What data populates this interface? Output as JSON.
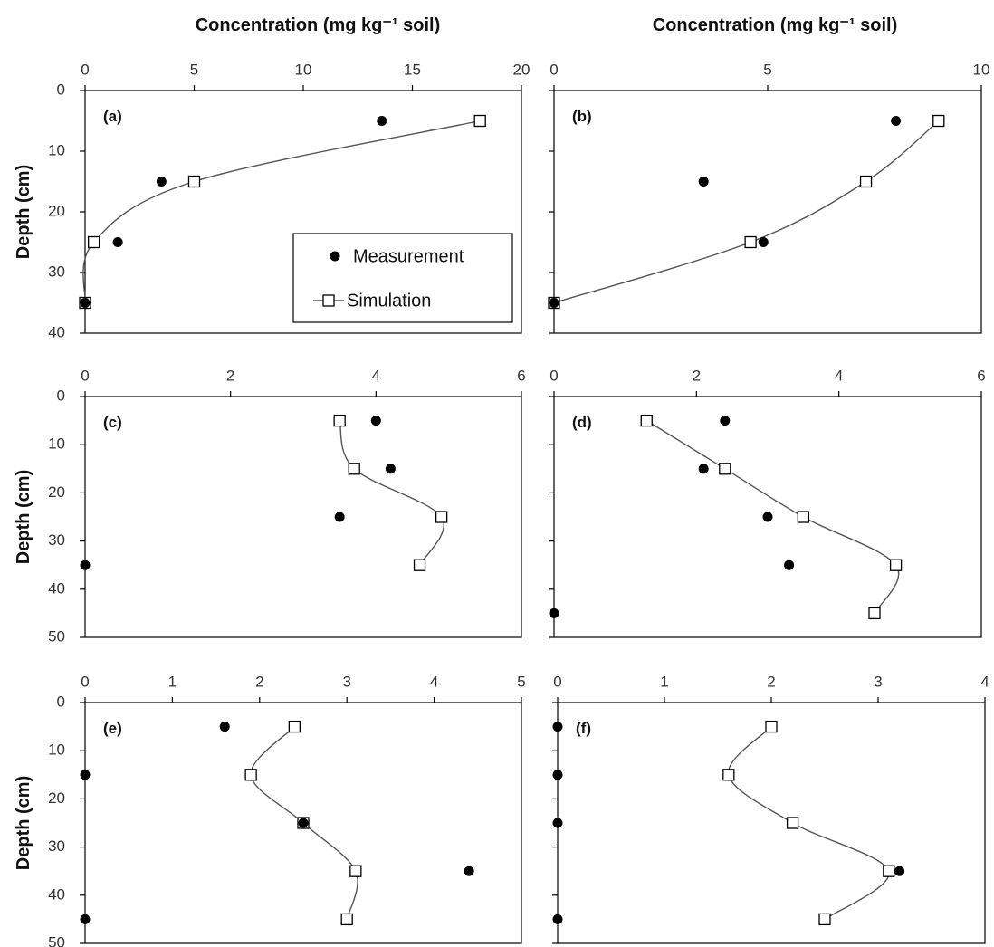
{
  "colors": {
    "frame": "#000000",
    "curve": "#555555",
    "marker": "#000000",
    "background": "#ffffff"
  },
  "legend": {
    "measurement_label": "Measurement",
    "simulation_label": "Simulation"
  },
  "chart_data": [
    {
      "type": "scatter",
      "panel_label": "(a)",
      "xlabel": "Concentration (mg kg⁻¹ soil)",
      "ylabel": "Depth (cm)",
      "xlim": [
        0,
        20
      ],
      "ylim": [
        0,
        40
      ],
      "x_ticks": [
        0,
        5,
        10,
        15,
        20
      ],
      "y_ticks": [
        0,
        10,
        20,
        30,
        40
      ],
      "y_reversed": true,
      "x_axis_position": "top",
      "legend_position": "bottom-right",
      "series": [
        {
          "name": "Measurement",
          "marker": "filled-circle",
          "x": [
            13.6,
            3.5,
            1.5,
            0.0
          ],
          "y": [
            5,
            15,
            25,
            35
          ]
        },
        {
          "name": "Simulation",
          "marker": "open-square",
          "line": "smooth",
          "x": [
            18.1,
            5.0,
            0.4,
            0.0
          ],
          "y": [
            5,
            15,
            25,
            35
          ]
        }
      ]
    },
    {
      "type": "scatter",
      "panel_label": "(b)",
      "xlabel": "Concentration (mg kg⁻¹ soil)",
      "ylabel": "",
      "xlim": [
        0,
        10
      ],
      "ylim": [
        0,
        40
      ],
      "x_ticks": [
        0,
        5,
        10
      ],
      "y_ticks": [
        0,
        10,
        20,
        30,
        40
      ],
      "y_reversed": true,
      "x_axis_position": "top",
      "series": [
        {
          "name": "Measurement",
          "marker": "filled-circle",
          "x": [
            8.0,
            3.5,
            4.9,
            0.0
          ],
          "y": [
            5,
            15,
            25,
            35
          ]
        },
        {
          "name": "Simulation",
          "marker": "open-square",
          "line": "smooth",
          "x": [
            9.0,
            7.3,
            4.6,
            0.0
          ],
          "y": [
            5,
            15,
            25,
            35
          ]
        }
      ]
    },
    {
      "type": "scatter",
      "panel_label": "(c)",
      "xlabel": "",
      "ylabel": "Depth (cm)",
      "xlim": [
        0,
        6
      ],
      "ylim": [
        0,
        50
      ],
      "x_ticks": [
        0,
        2,
        4,
        6
      ],
      "y_ticks": [
        0,
        10,
        20,
        30,
        40,
        50
      ],
      "y_reversed": true,
      "x_axis_position": "top",
      "series": [
        {
          "name": "Measurement",
          "marker": "filled-circle",
          "x": [
            4.0,
            4.2,
            3.5,
            0.0
          ],
          "y": [
            5,
            15,
            25,
            35
          ]
        },
        {
          "name": "Simulation",
          "marker": "open-square",
          "line": "smooth",
          "x": [
            3.5,
            3.7,
            4.9,
            4.6
          ],
          "y": [
            5,
            15,
            25,
            35
          ]
        }
      ]
    },
    {
      "type": "scatter",
      "panel_label": "(d)",
      "xlabel": "",
      "ylabel": "",
      "xlim": [
        0,
        6
      ],
      "ylim": [
        0,
        50
      ],
      "x_ticks": [
        0,
        2,
        4,
        6
      ],
      "y_ticks": [
        0,
        10,
        20,
        30,
        40,
        50
      ],
      "y_reversed": true,
      "x_axis_position": "top",
      "series": [
        {
          "name": "Measurement",
          "marker": "filled-circle",
          "x": [
            2.4,
            2.1,
            3.0,
            3.3,
            0.0
          ],
          "y": [
            5,
            15,
            25,
            35,
            45
          ]
        },
        {
          "name": "Simulation",
          "marker": "open-square",
          "line": "smooth",
          "x": [
            1.3,
            2.4,
            3.5,
            4.8,
            4.5
          ],
          "y": [
            5,
            15,
            25,
            35,
            45
          ]
        }
      ]
    },
    {
      "type": "scatter",
      "panel_label": "(e)",
      "xlabel": "",
      "ylabel": "Depth (cm)",
      "xlim": [
        0,
        5
      ],
      "ylim": [
        0,
        50
      ],
      "x_ticks": [
        0,
        1,
        2,
        3,
        4,
        5
      ],
      "y_ticks": [
        0,
        10,
        20,
        30,
        40,
        50
      ],
      "y_reversed": true,
      "x_axis_position": "top",
      "series": [
        {
          "name": "Measurement",
          "marker": "filled-circle",
          "x": [
            1.6,
            0.0,
            2.5,
            4.4,
            0.0
          ],
          "y": [
            5,
            15,
            25,
            35,
            45
          ]
        },
        {
          "name": "Simulation",
          "marker": "open-square",
          "line": "smooth",
          "x": [
            2.4,
            1.9,
            2.5,
            3.1,
            3.0
          ],
          "y": [
            5,
            15,
            25,
            35,
            45
          ]
        }
      ]
    },
    {
      "type": "scatter",
      "panel_label": "(f)",
      "xlabel": "",
      "ylabel": "",
      "xlim": [
        0,
        4
      ],
      "ylim": [
        0,
        50
      ],
      "x_ticks": [
        0,
        1,
        2,
        3,
        4
      ],
      "y_ticks": [
        0,
        10,
        20,
        30,
        40,
        50
      ],
      "y_reversed": true,
      "x_axis_position": "top",
      "series": [
        {
          "name": "Measurement",
          "marker": "filled-circle",
          "x": [
            0.0,
            0.0,
            0.0,
            3.2,
            0.0
          ],
          "y": [
            5,
            15,
            25,
            35,
            45
          ]
        },
        {
          "name": "Simulation",
          "marker": "open-square",
          "line": "smooth",
          "x": [
            2.0,
            1.6,
            2.2,
            3.1,
            2.5
          ],
          "y": [
            5,
            15,
            25,
            35,
            45
          ]
        }
      ]
    }
  ]
}
